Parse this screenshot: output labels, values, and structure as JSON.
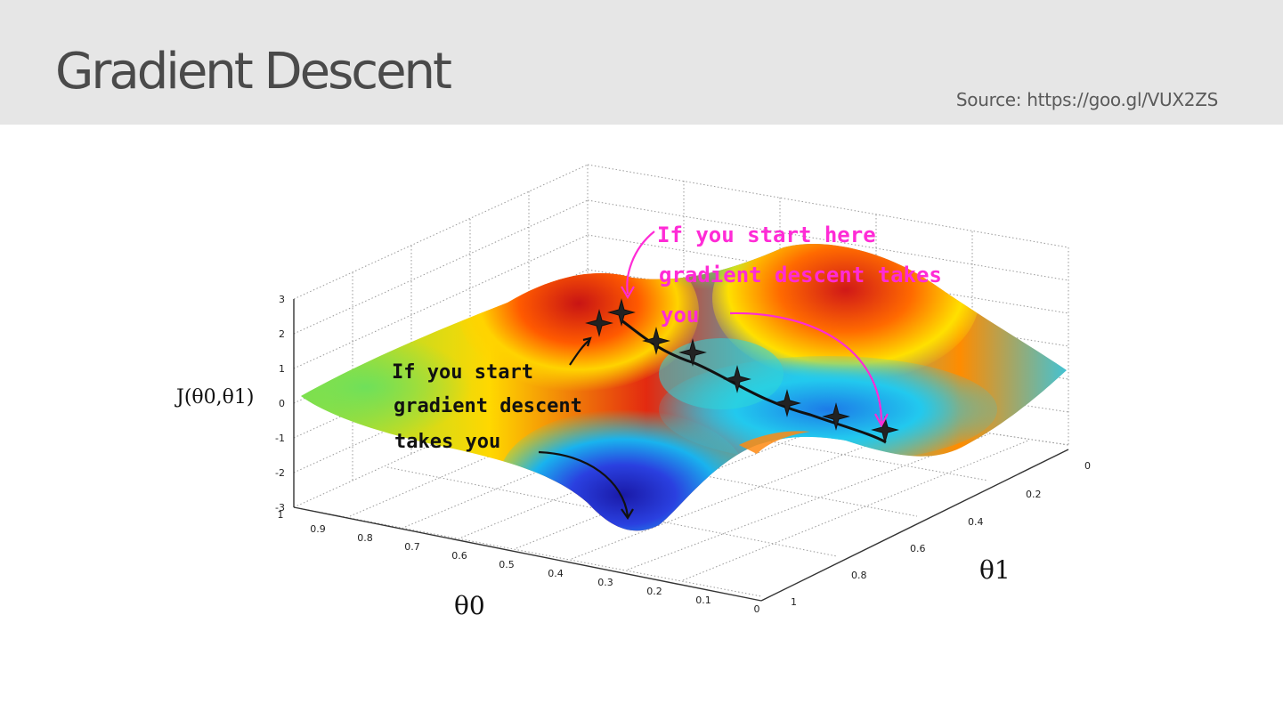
{
  "slide": {
    "title": "Gradient Descent",
    "source": "Source: https://goo.gl/VUX2ZS"
  },
  "figure": {
    "z_axis_label": "J(θ0,θ1)",
    "x_axis_label": "θ0",
    "y_axis_label": "θ1",
    "z_ticks": [
      "3",
      "2",
      "1",
      "0",
      "-1",
      "-2",
      "-3"
    ],
    "x_ticks": [
      "1",
      "0.9",
      "0.8",
      "0.7",
      "0.6",
      "0.5",
      "0.4",
      "0.3",
      "0.2",
      "0.1",
      "0"
    ],
    "y_ticks": [
      "0",
      "0.2",
      "0.4",
      "0.6",
      "0.8",
      "1"
    ],
    "annotation_black": [
      "If you start",
      "gradient descent",
      "takes you"
    ],
    "annotation_magenta": [
      "If you start here",
      "gradient descent takes",
      "you"
    ],
    "colors": {
      "annotation_black": "#111111",
      "annotation_magenta": "#ff2bd6",
      "surface_high": "#d81a1a",
      "surface_mid": "#ffe400",
      "surface_low": "#1d1fb8"
    }
  }
}
